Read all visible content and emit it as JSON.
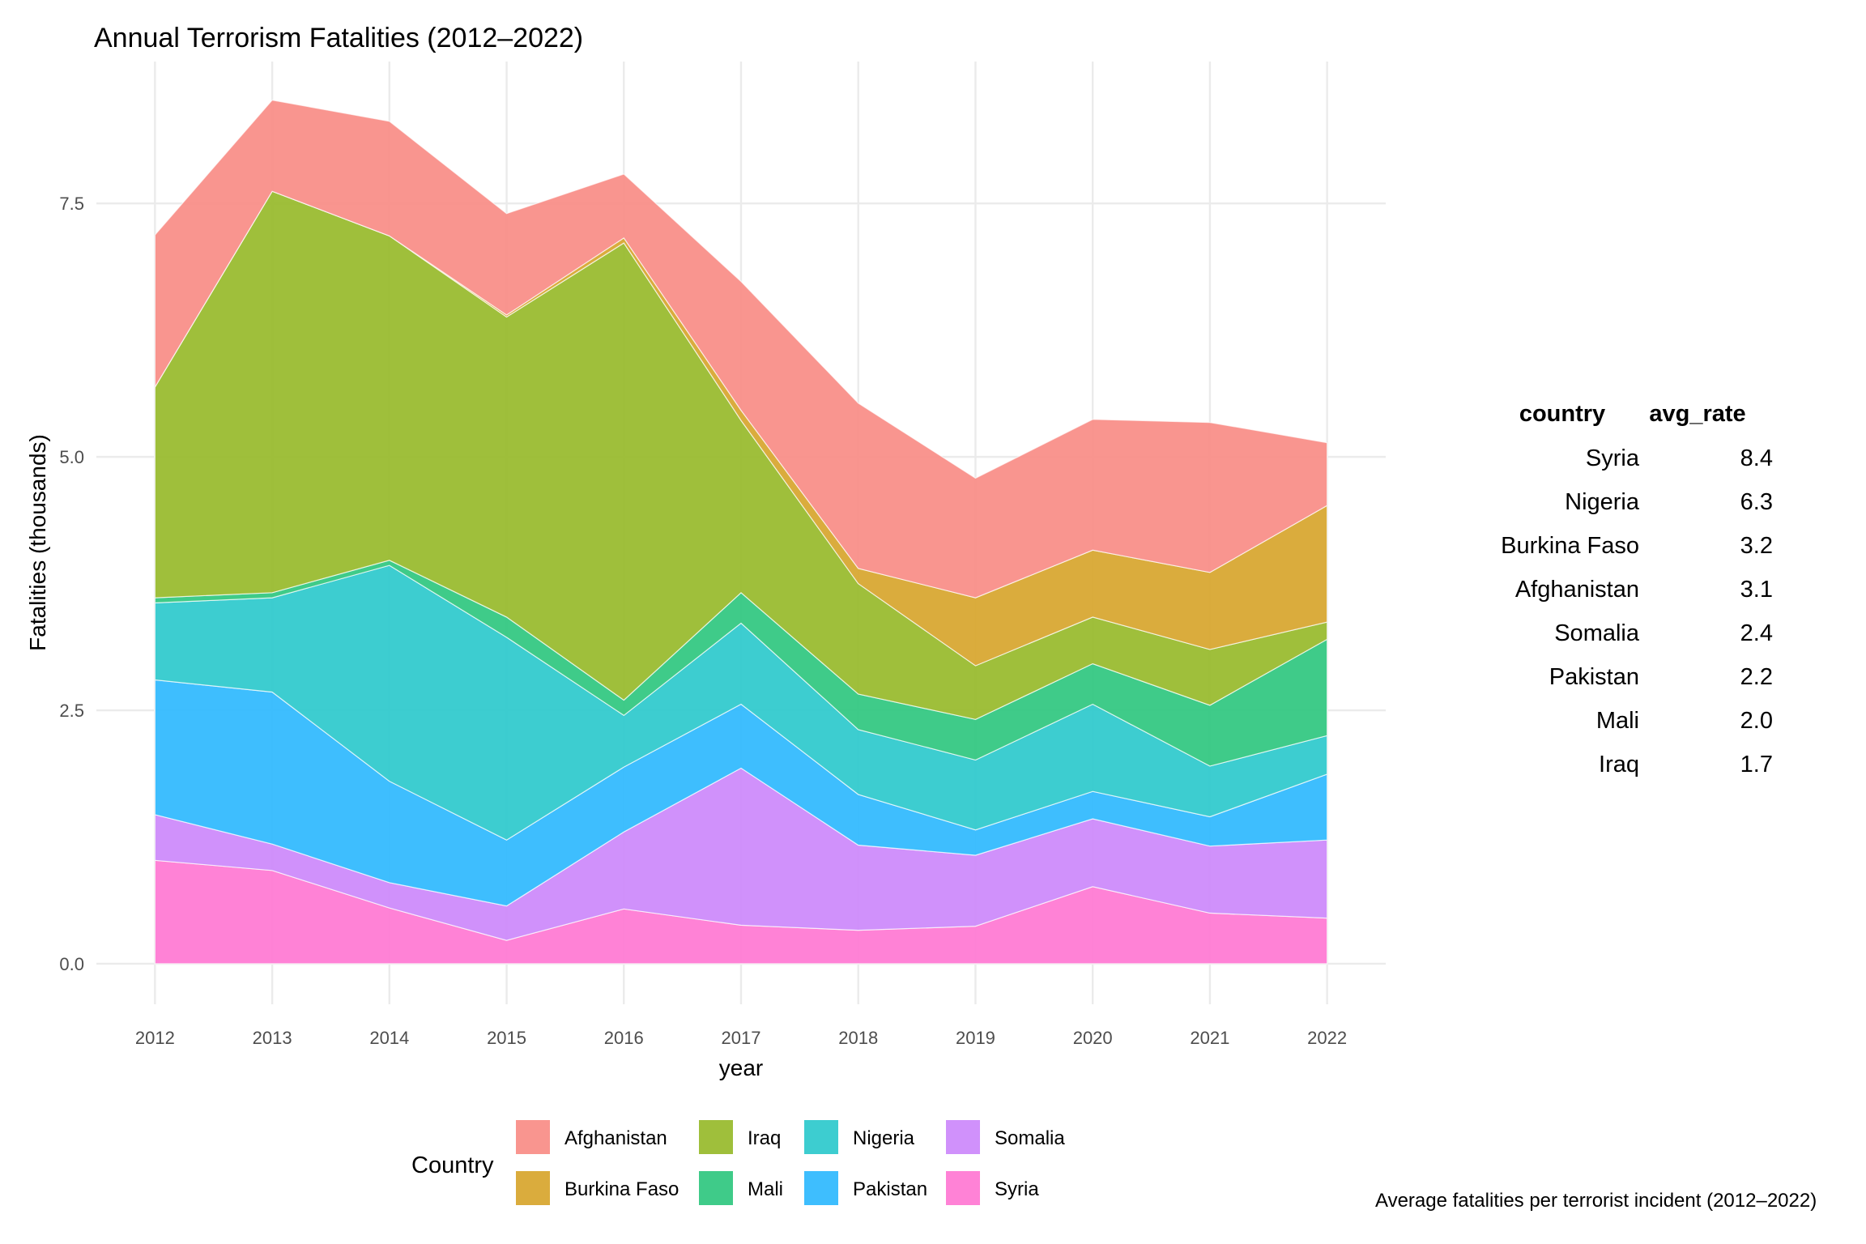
{
  "chart_data": {
    "type": "area",
    "title": "Annual Terrorism Fatalities (2012–2022)",
    "xlabel": "year",
    "ylabel": "Fatalities (thousands)",
    "x": [
      2012,
      2013,
      2014,
      2015,
      2016,
      2017,
      2018,
      2019,
      2020,
      2021,
      2022
    ],
    "ylim": [
      -0.4,
      8.9
    ],
    "y_ticks": [
      0.0,
      2.5,
      5.0,
      7.5
    ],
    "y_tick_labels": [
      "0.0",
      "2.5",
      "5.0",
      "7.5"
    ],
    "stacked": true,
    "grid": true,
    "legend": {
      "title": "Country",
      "position": "bottom",
      "entries": [
        "Afghanistan",
        "Burkina Faso",
        "Iraq",
        "Mali",
        "Nigeria",
        "Pakistan",
        "Somalia",
        "Syria"
      ]
    },
    "series": [
      {
        "name": "Syria",
        "color": "#FF77D2",
        "values": [
          1.02,
          0.92,
          0.55,
          0.23,
          0.54,
          0.38,
          0.33,
          0.37,
          0.76,
          0.5,
          0.45
        ]
      },
      {
        "name": "Somalia",
        "color": "#CC88FB",
        "values": [
          0.45,
          0.26,
          0.25,
          0.34,
          0.76,
          1.55,
          0.84,
          0.7,
          0.67,
          0.66,
          0.77
        ]
      },
      {
        "name": "Pakistan",
        "color": "#2EB8FE",
        "values": [
          1.33,
          1.5,
          1.0,
          0.65,
          0.64,
          0.63,
          0.5,
          0.25,
          0.27,
          0.29,
          0.65
        ]
      },
      {
        "name": "Nigeria",
        "color": "#2DC9CC",
        "values": [
          0.76,
          0.93,
          2.13,
          2.0,
          0.51,
          0.8,
          0.64,
          0.69,
          0.86,
          0.5,
          0.38
        ]
      },
      {
        "name": "Mali",
        "color": "#2FC77F",
        "values": [
          0.05,
          0.05,
          0.05,
          0.2,
          0.15,
          0.3,
          0.35,
          0.4,
          0.4,
          0.6,
          0.95
        ]
      },
      {
        "name": "Iraq",
        "color": "#97BA2A",
        "values": [
          2.08,
          3.96,
          3.2,
          2.96,
          4.51,
          1.7,
          1.09,
          0.53,
          0.46,
          0.55,
          0.17
        ]
      },
      {
        "name": "Burkina Faso",
        "color": "#D7A52D",
        "values": [
          0.0,
          0.0,
          0.0,
          0.02,
          0.05,
          0.1,
          0.15,
          0.67,
          0.66,
          0.76,
          1.15
        ]
      },
      {
        "name": "Afghanistan",
        "color": "#F98C85",
        "values": [
          1.5,
          0.9,
          1.13,
          1.0,
          0.63,
          1.27,
          1.63,
          1.18,
          1.29,
          1.48,
          0.62
        ]
      }
    ]
  },
  "table": {
    "headers": [
      "country",
      "avg_rate"
    ],
    "rows": [
      {
        "country": "Syria",
        "avg_rate": "8.4"
      },
      {
        "country": "Nigeria",
        "avg_rate": "6.3"
      },
      {
        "country": "Burkina Faso",
        "avg_rate": "3.2"
      },
      {
        "country": "Afghanistan",
        "avg_rate": "3.1"
      },
      {
        "country": "Somalia",
        "avg_rate": "2.4"
      },
      {
        "country": "Pakistan",
        "avg_rate": "2.2"
      },
      {
        "country": "Mali",
        "avg_rate": "2.0"
      },
      {
        "country": "Iraq",
        "avg_rate": "1.7"
      }
    ],
    "caption": "Average fatalities per terrorist incident (2012–2022)"
  }
}
